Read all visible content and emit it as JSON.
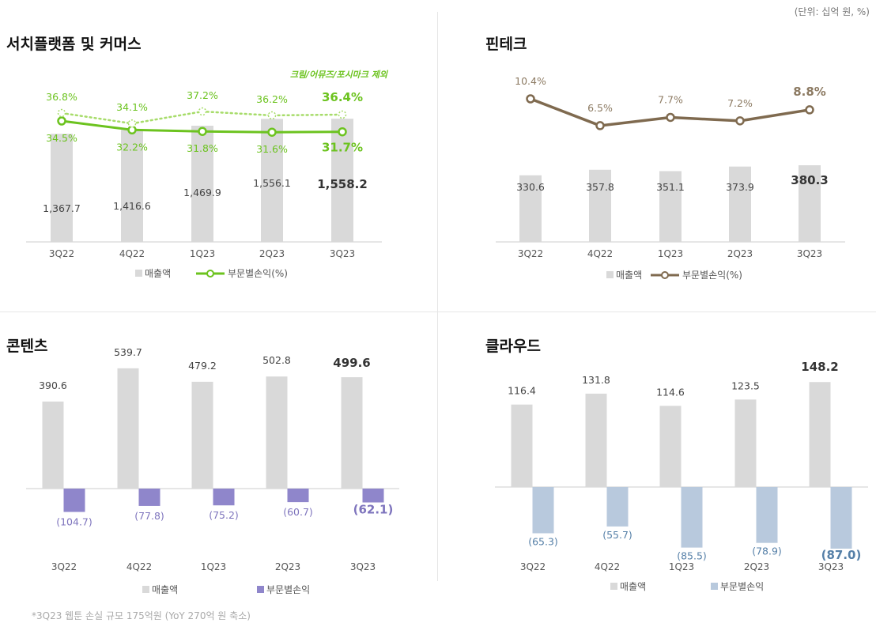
{
  "unit_note": "(단위: 십억 원, %)",
  "footnote": "*3Q23 웹툰 손실 규모  175억원 (YoY 270억 원 축소)",
  "legend": {
    "revenue": "매출액",
    "margin": "부문별손익(%)",
    "profit": "부문별손익"
  },
  "colors": {
    "bar": "#d9d9d9",
    "green": "#6cc31f",
    "green_light": "#a7dc6a",
    "brown": "#7f6a4f",
    "purple": "#8f86cb",
    "purple_text": "#7e74bd",
    "blue": "#b8c9dd",
    "blue_text": "#5680a8"
  },
  "chart_data": [
    {
      "type": "bar",
      "title": "서치플랫폼 및 커머스",
      "categories": [
        "3Q22",
        "4Q22",
        "1Q23",
        "2Q23",
        "3Q23"
      ],
      "series": [
        {
          "name": "매출액",
          "type": "bar",
          "values": [
            1367.7,
            1416.6,
            1469.9,
            1556.1,
            1558.2
          ],
          "labels": [
            "1,367.7",
            "1,416.6",
            "1,469.9",
            "1,556.1",
            "1,558.2"
          ]
        },
        {
          "name": "부문별손익(%)",
          "type": "line",
          "values": [
            34.5,
            32.2,
            31.8,
            31.6,
            31.7
          ],
          "labels": [
            "34.5%",
            "32.2%",
            "31.8%",
            "31.6%",
            "31.7%"
          ]
        },
        {
          "name": "크림/어뮤즈/포시마크 제외",
          "type": "line",
          "style": "dotted",
          "values": [
            36.8,
            34.1,
            37.2,
            36.2,
            36.4
          ],
          "labels": [
            "36.8%",
            "34.1%",
            "37.2%",
            "36.2%",
            "36.4%"
          ]
        }
      ]
    },
    {
      "type": "bar",
      "title": "핀테크",
      "categories": [
        "3Q22",
        "4Q22",
        "1Q23",
        "2Q23",
        "3Q23"
      ],
      "series": [
        {
          "name": "매출액",
          "type": "bar",
          "values": [
            330.6,
            357.8,
            351.1,
            373.9,
            380.3
          ],
          "labels": [
            "330.6",
            "357.8",
            "351.1",
            "373.9",
            "380.3"
          ]
        },
        {
          "name": "부문별손익(%)",
          "type": "line",
          "values": [
            10.4,
            6.5,
            7.7,
            7.2,
            8.8
          ],
          "labels": [
            "10.4%",
            "6.5%",
            "7.7%",
            "7.2%",
            "8.8%"
          ]
        }
      ]
    },
    {
      "type": "bar",
      "title": "콘텐츠",
      "categories": [
        "3Q22",
        "4Q22",
        "1Q23",
        "2Q23",
        "3Q23"
      ],
      "series": [
        {
          "name": "매출액",
          "type": "bar",
          "values": [
            390.6,
            539.7,
            479.2,
            502.8,
            499.6
          ],
          "labels": [
            "390.6",
            "539.7",
            "479.2",
            "502.8",
            "499.6"
          ]
        },
        {
          "name": "부문별손익",
          "type": "bar",
          "values": [
            -104.7,
            -77.8,
            -75.2,
            -60.7,
            -62.1
          ],
          "labels": [
            "(104.7)",
            "(77.8)",
            "(75.2)",
            "(60.7)",
            "(62.1)"
          ]
        }
      ]
    },
    {
      "type": "bar",
      "title": "클라우드",
      "categories": [
        "3Q22",
        "4Q22",
        "1Q23",
        "2Q23",
        "3Q23"
      ],
      "series": [
        {
          "name": "매출액",
          "type": "bar",
          "values": [
            116.4,
            131.8,
            114.6,
            123.5,
            148.2
          ],
          "labels": [
            "116.4",
            "131.8",
            "114.6",
            "123.5",
            "148.2"
          ]
        },
        {
          "name": "부문별손익",
          "type": "bar",
          "values": [
            -65.3,
            -55.7,
            -85.5,
            -78.9,
            -87.0
          ],
          "labels": [
            "(65.3)",
            "(55.7)",
            "(85.5)",
            "(78.9)",
            "(87.0)"
          ]
        }
      ]
    }
  ]
}
